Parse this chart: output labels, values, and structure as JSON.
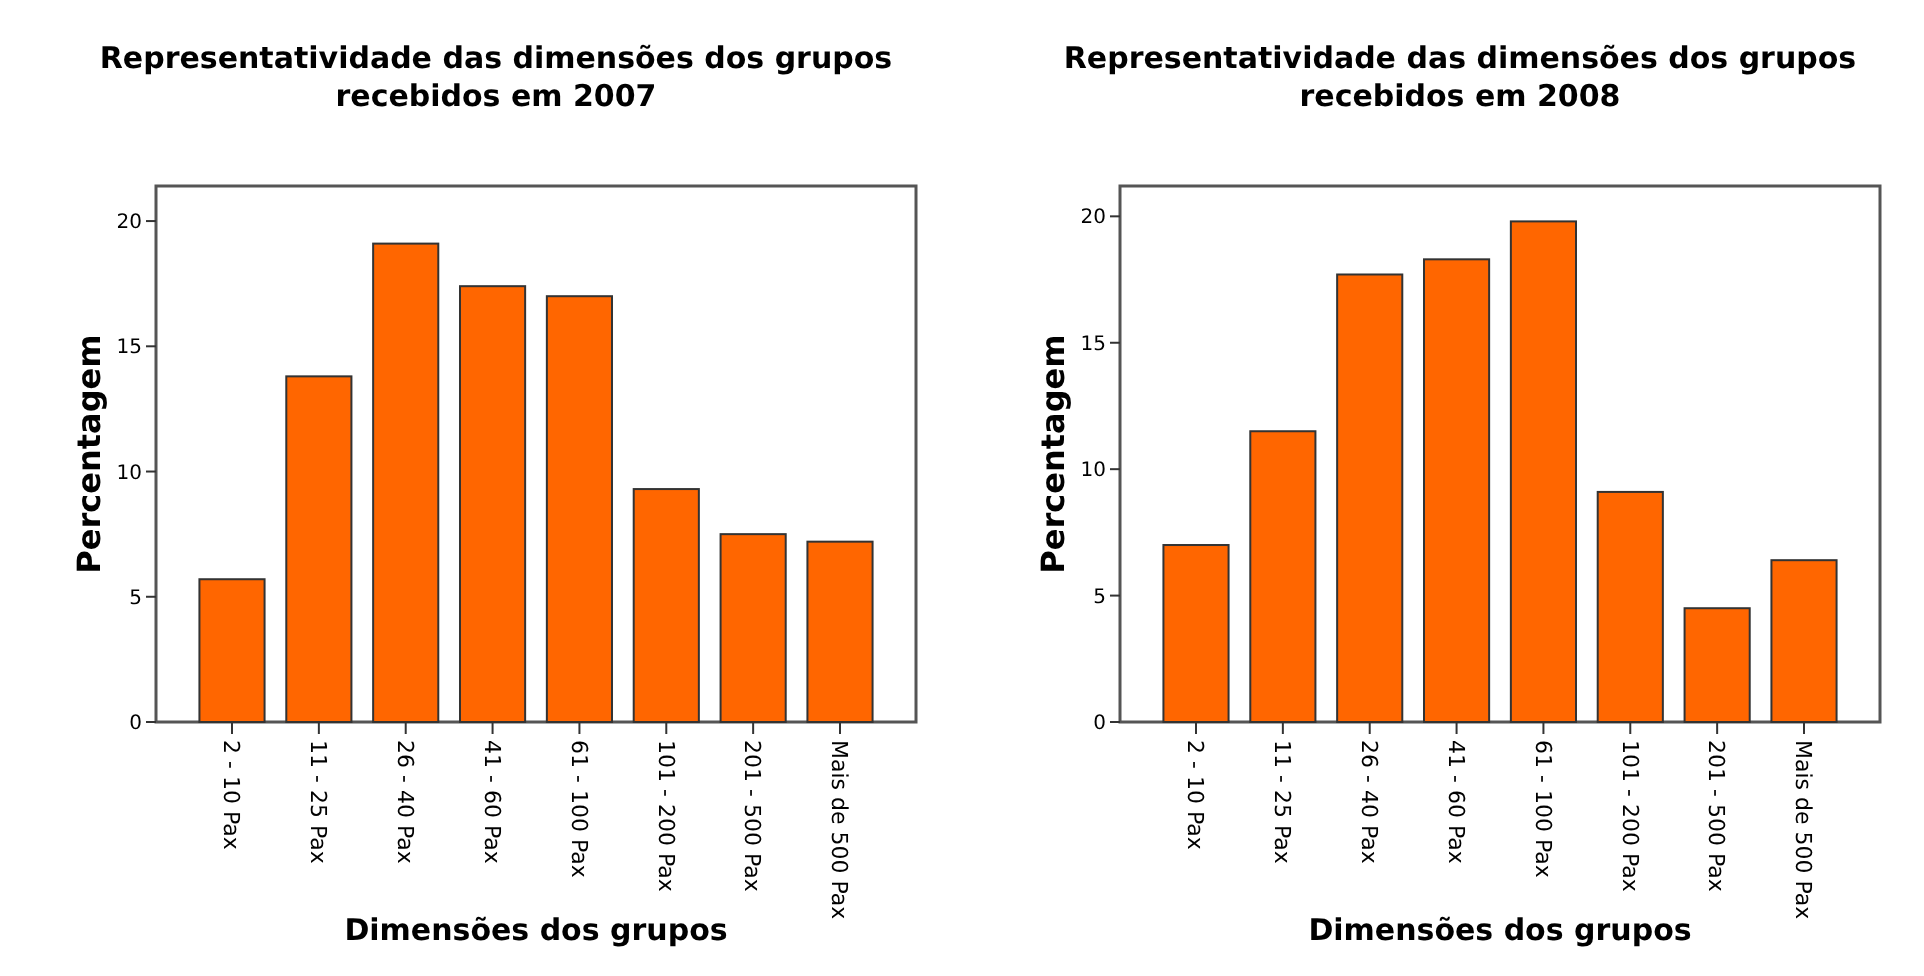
{
  "chart_data": [
    {
      "type": "bar",
      "title": "Representatividade das dimensões dos grupos recebidos em 2007",
      "xlabel": "Dimensões dos grupos",
      "ylabel": "Percentagem",
      "categories": [
        "2 - 10 Pax",
        "11 - 25 Pax",
        "26 - 40 Pax",
        "41 - 60 Pax",
        "61 - 100 Pax",
        "101 - 200 Pax",
        "201 - 500 Pax",
        "Mais de 500 Pax"
      ],
      "values": [
        5.7,
        13.8,
        19.1,
        17.4,
        17.0,
        9.3,
        7.5,
        7.2
      ],
      "color": "#ff6600",
      "ylim": [
        0,
        21.4
      ],
      "yticks": [
        0,
        5,
        10,
        15,
        20
      ]
    },
    {
      "type": "bar",
      "title": "Representatividade das dimensões dos grupos recebidos em 2008",
      "xlabel": "Dimensões dos grupos",
      "ylabel": "Percentagem",
      "categories": [
        "2 - 10 Pax",
        "11 - 25 Pax",
        "26 - 40 Pax",
        "41 - 60 Pax",
        "61 - 100 Pax",
        "101 - 200 Pax",
        "201 - 500 Pax",
        "Mais de 500 Pax"
      ],
      "values": [
        7.0,
        11.5,
        17.7,
        18.3,
        19.8,
        9.1,
        4.5,
        6.4
      ],
      "color": "#ff6600",
      "ylim": [
        0,
        21.2
      ],
      "yticks": [
        0,
        5,
        10,
        15,
        20
      ]
    }
  ]
}
